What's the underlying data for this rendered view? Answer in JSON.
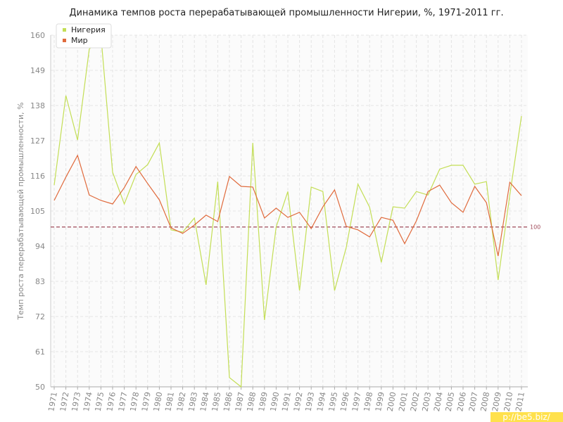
{
  "chart_data": {
    "type": "line",
    "title": "Динамика темпов роста перерабатывающей промышленности Нигерии, %, 1971-2011 гг.",
    "y_label": "Темп роста перерабатывающей промышленности, %",
    "categories": [
      "1971",
      "1972",
      "1973",
      "1974",
      "1975",
      "1976",
      "1977",
      "1978",
      "1979",
      "1980",
      "1981",
      "1982",
      "1983",
      "1984",
      "1985",
      "1986",
      "1987",
      "1988",
      "1989",
      "1990",
      "1991",
      "1992",
      "1993",
      "1994",
      "1995",
      "1996",
      "1997",
      "1998",
      "1999",
      "2000",
      "2001",
      "2002",
      "2003",
      "2004",
      "2005",
      "2006",
      "2007",
      "2008",
      "2009",
      "2010",
      "2011"
    ],
    "series": [
      {
        "name": "Нигерия",
        "color": "#c3de55",
        "values": [
          113.1,
          141.1,
          127.2,
          155.6,
          160,
          117.1,
          107.2,
          116.4,
          119.5,
          126.3,
          99.1,
          98.4,
          102.8,
          81.9,
          114.2,
          52.9,
          50,
          126.3,
          70.9,
          100,
          111.1,
          80.1,
          112.5,
          111.1,
          80.1,
          93.6,
          113.4,
          106.2,
          88.9,
          106.3,
          105.9,
          111.1,
          110,
          118.1,
          119.3,
          119.3,
          113.4,
          114.2,
          83.4,
          110,
          134.7
        ]
      },
      {
        "name": "Мир",
        "color": "#e06a3c",
        "values": [
          108.3,
          115.6,
          122.4,
          110,
          108.3,
          107.2,
          112.3,
          118.9,
          113.6,
          108.5,
          99.7,
          98,
          100.6,
          103.7,
          101.7,
          115.8,
          112.7,
          112.5,
          102.8,
          105.9,
          103,
          104.6,
          99.5,
          106.3,
          111.6,
          100.2,
          99.1,
          96.9,
          103,
          102.1,
          94.8,
          101.9,
          111.1,
          113.1,
          107.6,
          104.6,
          112.7,
          107.6,
          90.9,
          114,
          109.8
        ]
      }
    ],
    "ylim": [
      50,
      160
    ],
    "yticks": [
      50,
      61,
      72,
      83,
      94,
      105,
      116,
      127,
      138,
      149,
      160
    ],
    "grid": true,
    "reference_line": {
      "value": 100,
      "label": "100",
      "color": "#a04a5a"
    },
    "watermark": "p://be5.biz/"
  }
}
